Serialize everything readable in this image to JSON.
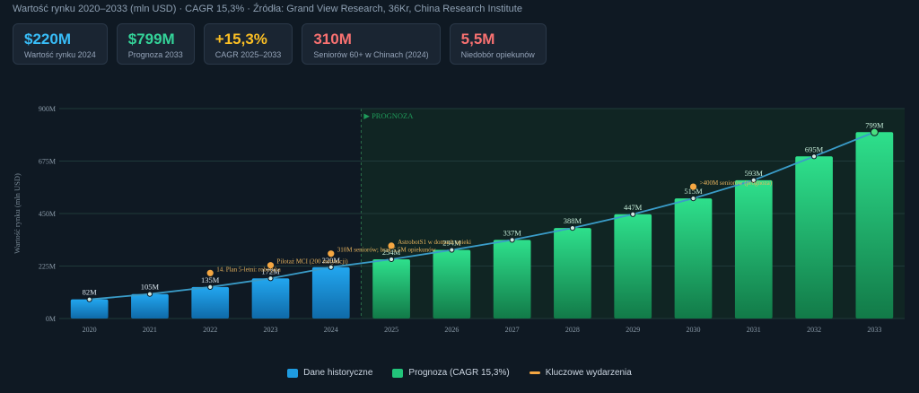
{
  "header": {
    "subtitle": "Wartość rynku 2020–2033 (mln USD) · CAGR 15,3% · Źródła: Grand View Research, 36Kr, China Research Institute"
  },
  "kpis": [
    {
      "value": "$220M",
      "label": "Wartość rynku 2024",
      "color": "#38bdf8"
    },
    {
      "value": "$799M",
      "label": "Prognoza 2033",
      "color": "#34d399"
    },
    {
      "value": "+15,3%",
      "label": "CAGR 2025–2033",
      "color": "#fbbf24"
    },
    {
      "value": "310M",
      "label": "Seniorów 60+ w Chinach (2024)",
      "color": "#f87171"
    },
    {
      "value": "5,5M",
      "label": "Niedobór opiekunów",
      "color": "#f87171"
    }
  ],
  "chart_data": {
    "type": "bar",
    "ylabel": "Wartość rynku (mln USD)",
    "ylim": [
      0,
      900
    ],
    "y_ticks": [
      "0M",
      "225M",
      "450M",
      "675M",
      "900M"
    ],
    "grid": true,
    "forecast_label": "▶ PROGNOZA",
    "categories": [
      "2020",
      "2021",
      "2022",
      "2023",
      "2024",
      "2025",
      "2026",
      "2027",
      "2028",
      "2029",
      "2030",
      "2031",
      "2032",
      "2033"
    ],
    "values": [
      82,
      105,
      135,
      172,
      220,
      254,
      294,
      337,
      388,
      447,
      515,
      593,
      695,
      799
    ],
    "value_labels": [
      "82M",
      "105M",
      "135M",
      "172M",
      "220M",
      "254M",
      "294M",
      "337M",
      "388M",
      "447M",
      "515M",
      "593M",
      "695M",
      "799M"
    ],
    "historical_count": 5,
    "colors": {
      "historical": "#1e9be0",
      "forecast": "#22c47a",
      "event": "#f5a742",
      "trend": "#3a9cc8",
      "grid": "#1f3a3a"
    },
    "events": [
      {
        "year": "2022",
        "value": 195,
        "label": "14. Plan 5-letni: robotyka"
      },
      {
        "year": "2023",
        "value": 228,
        "label": "Pilotaż MCI (200 instytucji)"
      },
      {
        "year": "2024",
        "value": 278,
        "label": "310M seniorów; brak 5,5M opiekunów"
      },
      {
        "year": "2025",
        "value": 312,
        "label": "AstrobotS1 w domach opieki"
      },
      {
        "year": "2030",
        "value": 565,
        "label": ">400M seniorów (prognoza)"
      }
    ]
  },
  "legend": {
    "historical": "Dane historyczne",
    "forecast": "Prognoza (CAGR 15,3%)",
    "events": "Kluczowe wydarzenia"
  }
}
